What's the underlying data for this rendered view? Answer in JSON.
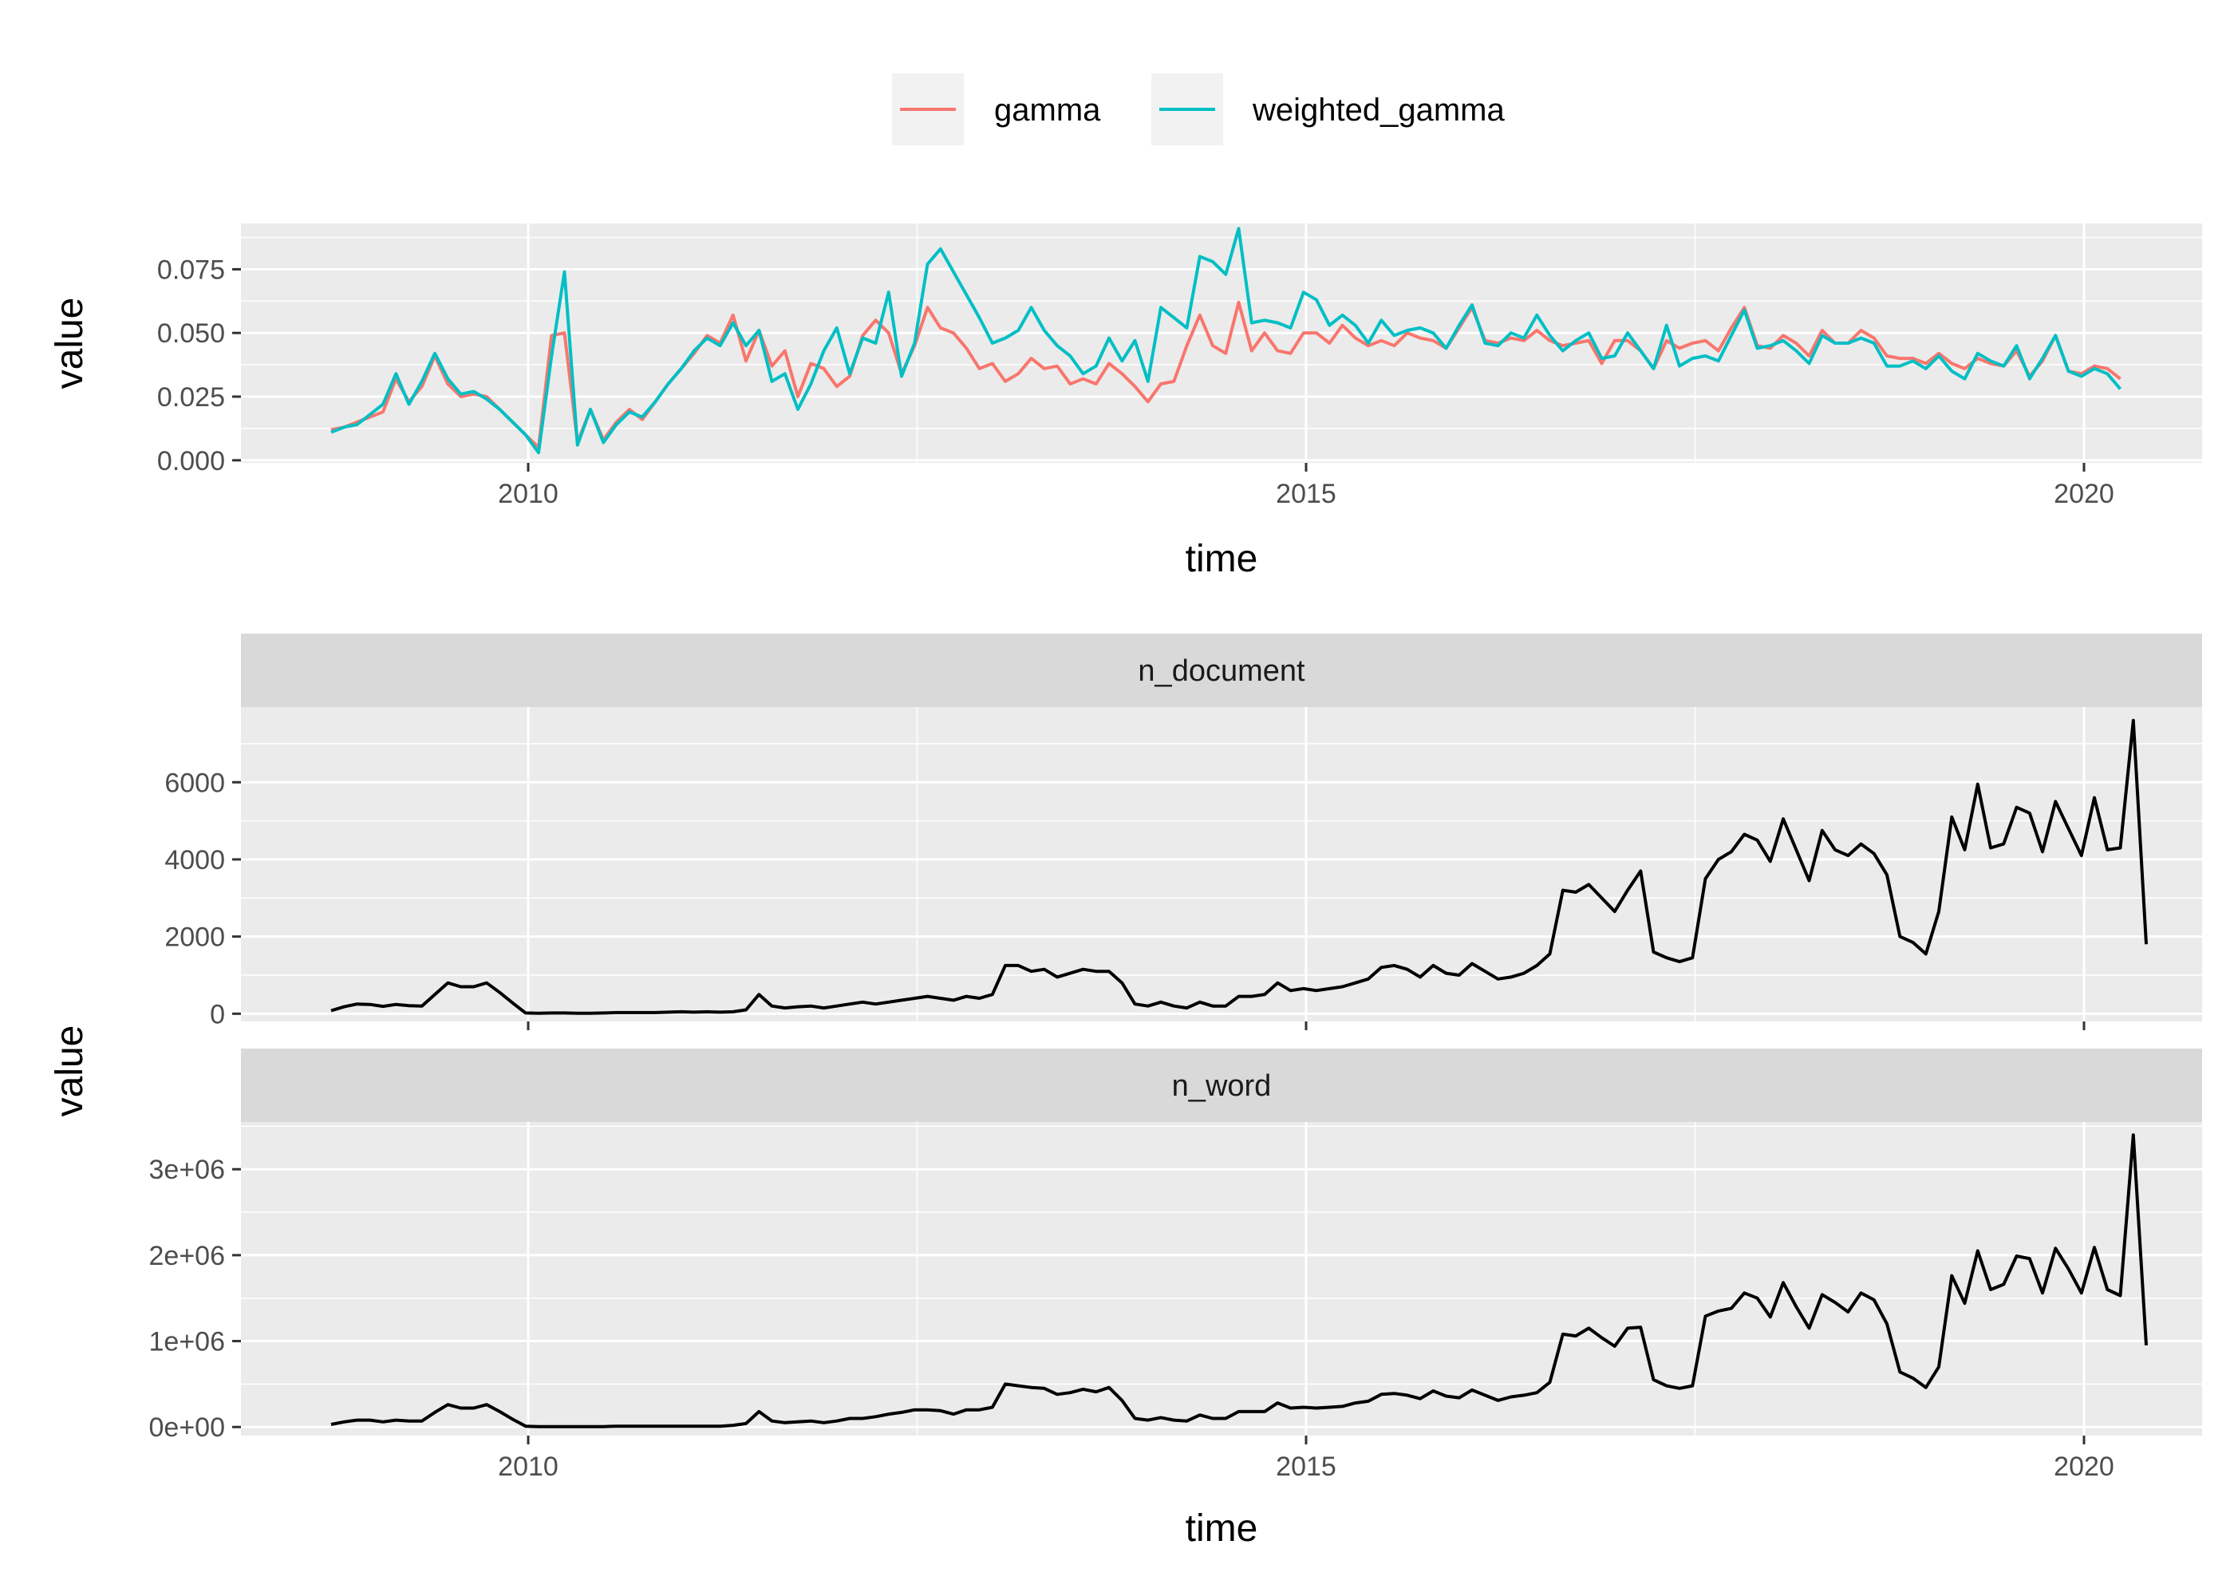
{
  "chart_data": [
    {
      "type": "line",
      "xlabel": "time",
      "ylabel": "value",
      "x_ticks": [
        "2010",
        "2015",
        "2020"
      ],
      "y_ticks": [
        "0.000",
        "0.025",
        "0.050",
        "0.075"
      ],
      "ylim": [
        -0.001,
        0.093
      ],
      "legend_position": "top",
      "grid": true,
      "series": [
        {
          "name": "gamma",
          "color": "#F8766D",
          "values": [
            0.012,
            0.013,
            0.015,
            0.017,
            0.019,
            0.032,
            0.023,
            0.029,
            0.041,
            0.03,
            0.025,
            0.026,
            0.025,
            0.02,
            0.015,
            0.01,
            0.005,
            0.049,
            0.05,
            0.007,
            0.02,
            0.008,
            0.015,
            0.02,
            0.016,
            0.023,
            0.03,
            0.036,
            0.042,
            0.049,
            0.046,
            0.057,
            0.039,
            0.051,
            0.037,
            0.043,
            0.025,
            0.038,
            0.036,
            0.029,
            0.033,
            0.049,
            0.055,
            0.05,
            0.034,
            0.045,
            0.06,
            0.052,
            0.05,
            0.044,
            0.036,
            0.038,
            0.031,
            0.034,
            0.04,
            0.036,
            0.037,
            0.03,
            0.032,
            0.03,
            0.038,
            0.034,
            0.029,
            0.023,
            0.03,
            0.031,
            0.045,
            0.057,
            0.045,
            0.042,
            0.062,
            0.043,
            0.05,
            0.043,
            0.042,
            0.05,
            0.05,
            0.046,
            0.053,
            0.048,
            0.045,
            0.047,
            0.045,
            0.05,
            0.048,
            0.047,
            0.044,
            0.052,
            0.06,
            0.047,
            0.046,
            0.048,
            0.047,
            0.051,
            0.047,
            0.045,
            0.046,
            0.047,
            0.038,
            0.047,
            0.047,
            0.043,
            0.036,
            0.047,
            0.044,
            0.046,
            0.047,
            0.043,
            0.052,
            0.06,
            0.045,
            0.044,
            0.049,
            0.046,
            0.041,
            0.051,
            0.046,
            0.046,
            0.051,
            0.048,
            0.041,
            0.04,
            0.04,
            0.038,
            0.042,
            0.038,
            0.036,
            0.04,
            0.038,
            0.037,
            0.043,
            0.033,
            0.039,
            0.049,
            0.035,
            0.034,
            0.037,
            0.036,
            0.032
          ]
        },
        {
          "name": "weighted_gamma",
          "color": "#00BFC4",
          "values": [
            0.011,
            0.013,
            0.014,
            0.018,
            0.022,
            0.034,
            0.022,
            0.031,
            0.042,
            0.032,
            0.026,
            0.027,
            0.024,
            0.02,
            0.015,
            0.01,
            0.003,
            0.041,
            0.074,
            0.006,
            0.02,
            0.007,
            0.014,
            0.019,
            0.017,
            0.023,
            0.03,
            0.036,
            0.043,
            0.048,
            0.045,
            0.054,
            0.045,
            0.051,
            0.031,
            0.034,
            0.02,
            0.03,
            0.043,
            0.052,
            0.034,
            0.048,
            0.046,
            0.066,
            0.033,
            0.046,
            0.077,
            0.083,
            0.074,
            0.065,
            0.056,
            0.046,
            0.048,
            0.051,
            0.06,
            0.051,
            0.045,
            0.041,
            0.034,
            0.037,
            0.048,
            0.039,
            0.047,
            0.031,
            0.06,
            0.056,
            0.052,
            0.08,
            0.078,
            0.073,
            0.091,
            0.054,
            0.055,
            0.054,
            0.052,
            0.066,
            0.063,
            0.053,
            0.057,
            0.053,
            0.046,
            0.055,
            0.049,
            0.051,
            0.052,
            0.05,
            0.044,
            0.053,
            0.061,
            0.046,
            0.045,
            0.05,
            0.048,
            0.057,
            0.049,
            0.043,
            0.047,
            0.05,
            0.04,
            0.041,
            0.05,
            0.043,
            0.036,
            0.053,
            0.037,
            0.04,
            0.041,
            0.039,
            0.049,
            0.059,
            0.044,
            0.045,
            0.047,
            0.043,
            0.038,
            0.049,
            0.046,
            0.046,
            0.048,
            0.046,
            0.037,
            0.037,
            0.039,
            0.036,
            0.041,
            0.035,
            0.032,
            0.042,
            0.039,
            0.037,
            0.045,
            0.032,
            0.04,
            0.049,
            0.035,
            0.033,
            0.036,
            0.034,
            0.028
          ]
        }
      ]
    },
    {
      "type": "line",
      "facet": "n_document",
      "xlabel": "time",
      "ylabel": "value",
      "x_ticks": [
        "2010",
        "2015",
        "2020"
      ],
      "y_ticks": [
        "0",
        "2000",
        "4000",
        "6000"
      ],
      "ylim": [
        -200,
        7950
      ],
      "grid": true,
      "series": [
        {
          "color": "#000000",
          "values": [
            80,
            180,
            250,
            240,
            190,
            240,
            210,
            200,
            500,
            800,
            700,
            700,
            800,
            550,
            280,
            20,
            10,
            20,
            20,
            10,
            10,
            20,
            30,
            30,
            30,
            30,
            40,
            50,
            40,
            50,
            40,
            50,
            100,
            500,
            200,
            150,
            180,
            200,
            150,
            200,
            250,
            300,
            250,
            300,
            350,
            400,
            450,
            400,
            350,
            450,
            400,
            500,
            1250,
            1250,
            1100,
            1150,
            950,
            1050,
            1150,
            1100,
            1100,
            800,
            250,
            200,
            300,
            200,
            150,
            300,
            200,
            200,
            450,
            450,
            500,
            800,
            600,
            650,
            600,
            650,
            700,
            800,
            900,
            1200,
            1250,
            1150,
            950,
            1250,
            1050,
            1000,
            1300,
            1100,
            900,
            950,
            1050,
            1250,
            1550,
            3200,
            3150,
            3350,
            3000,
            2650,
            3200,
            3700,
            1600,
            1450,
            1350,
            1450,
            3500,
            4000,
            4200,
            4650,
            4500,
            3950,
            5050,
            4250,
            3450,
            4750,
            4250,
            4100,
            4400,
            4150,
            3600,
            2000,
            1850,
            1550,
            2650,
            5100,
            4250,
            5950,
            4300,
            4400,
            5350,
            5200,
            4200,
            5500,
            4800,
            4100,
            5600,
            4250,
            4300,
            7600,
            1800
          ]
        }
      ]
    },
    {
      "type": "line",
      "facet": "n_word",
      "xlabel": "time",
      "ylabel": "value",
      "x_ticks": [
        "2010",
        "2015",
        "2020"
      ],
      "y_ticks": [
        "0e+00",
        "1e+06",
        "2e+06",
        "3e+06"
      ],
      "ylim": [
        -100000,
        3550000
      ],
      "grid": true,
      "series": [
        {
          "color": "#000000",
          "values": [
            30000,
            60000,
            80000,
            80000,
            60000,
            80000,
            70000,
            70000,
            170000,
            260000,
            220000,
            220000,
            260000,
            180000,
            90000,
            10000,
            5000,
            5000,
            5000,
            5000,
            5000,
            5000,
            10000,
            10000,
            10000,
            10000,
            10000,
            10000,
            10000,
            10000,
            10000,
            20000,
            40000,
            180000,
            70000,
            50000,
            60000,
            70000,
            50000,
            70000,
            100000,
            100000,
            120000,
            150000,
            170000,
            200000,
            200000,
            190000,
            150000,
            200000,
            200000,
            230000,
            500000,
            480000,
            460000,
            450000,
            380000,
            400000,
            440000,
            410000,
            460000,
            310000,
            100000,
            80000,
            110000,
            80000,
            70000,
            140000,
            100000,
            100000,
            180000,
            180000,
            180000,
            280000,
            220000,
            230000,
            220000,
            230000,
            240000,
            280000,
            300000,
            380000,
            390000,
            370000,
            330000,
            420000,
            360000,
            340000,
            430000,
            370000,
            310000,
            350000,
            370000,
            400000,
            520000,
            1080000,
            1060000,
            1150000,
            1040000,
            940000,
            1150000,
            1160000,
            550000,
            480000,
            450000,
            480000,
            1290000,
            1350000,
            1380000,
            1560000,
            1500000,
            1280000,
            1680000,
            1400000,
            1150000,
            1540000,
            1450000,
            1340000,
            1560000,
            1480000,
            1200000,
            640000,
            570000,
            460000,
            700000,
            1760000,
            1440000,
            2050000,
            1600000,
            1660000,
            1990000,
            1960000,
            1560000,
            2080000,
            1840000,
            1560000,
            2090000,
            1600000,
            1530000,
            3400000,
            950000
          ]
        }
      ]
    }
  ]
}
